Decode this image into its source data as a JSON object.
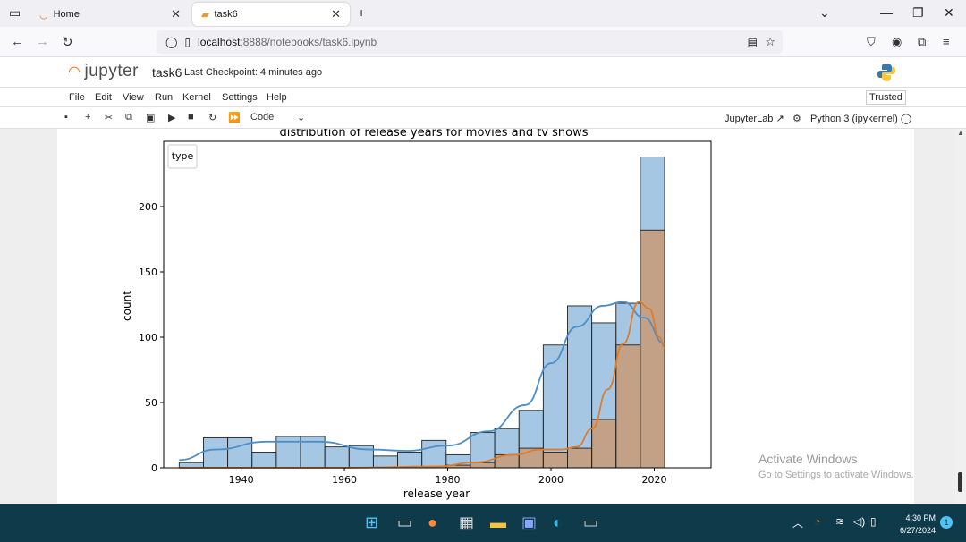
{
  "browser": {
    "tabs": [
      {
        "label": "Home",
        "active": false
      },
      {
        "label": "task6",
        "active": true
      }
    ],
    "new_tab_label": "+",
    "url_host": "localhost",
    "url_rest": ":8888/notebooks/task6.ipynb"
  },
  "jupyter": {
    "logo_text": "jupyter",
    "notebook_name": "task6",
    "checkpoint": "Last Checkpoint: 4 minutes ago",
    "menu": [
      "File",
      "Edit",
      "View",
      "Run",
      "Kernel",
      "Settings",
      "Help"
    ],
    "trusted": "Trusted",
    "cell_type": "Code",
    "jupyterlab_label": "JupyterLab",
    "kernel": "Python 3 (ipykernel)"
  },
  "watermark": {
    "line1": "Activate Windows",
    "line2": "Go to Settings to activate Windows."
  },
  "taskbar": {
    "time": "4:30 PM",
    "date": "6/27/2024",
    "notification_count": "1"
  },
  "colors": {
    "movie": "#4c8fc8",
    "tv": "#e07b2a",
    "taskbar": "#0f3a4a"
  },
  "chart_data": {
    "type": "bar",
    "title": "distribution of release years for movies and tv shows",
    "xlabel": "release year",
    "ylabel": "count",
    "legend_title": "type",
    "legend_placement": "top-left",
    "xlim": [
      1925,
      2031
    ],
    "ylim": [
      0,
      250
    ],
    "xticks": [
      1940,
      1960,
      1980,
      2000,
      2020
    ],
    "yticks": [
      0,
      50,
      100,
      150,
      200
    ],
    "bin_edges": [
      1928,
      1932.7,
      1937.4,
      1942.1,
      1946.8,
      1951.5,
      1956.2,
      1960.9,
      1965.6,
      1970.3,
      1975,
      1979.7,
      1984.4,
      1989.1,
      1993.8,
      1998.5,
      2003.2,
      2007.9,
      2012.6,
      2017.3,
      2022
    ],
    "series": [
      {
        "color_key": "movie",
        "values": [
          4,
          23,
          23,
          12,
          24,
          24,
          16,
          17,
          9,
          12,
          21,
          10,
          27,
          30,
          44,
          94,
          124,
          111,
          126,
          238
        ]
      },
      {
        "color_key": "tv",
        "values": [
          0,
          0,
          0,
          0,
          0,
          0,
          0,
          0,
          0,
          0,
          0,
          2,
          4,
          10,
          15,
          12,
          15,
          37,
          94,
          182
        ]
      }
    ],
    "kde": [
      {
        "color_key": "movie",
        "points": [
          [
            1928,
            6
          ],
          [
            1935,
            14
          ],
          [
            1945,
            20
          ],
          [
            1955,
            20
          ],
          [
            1965,
            14
          ],
          [
            1972,
            13
          ],
          [
            1980,
            17
          ],
          [
            1988,
            28
          ],
          [
            1995,
            48
          ],
          [
            2000,
            80
          ],
          [
            2005,
            108
          ],
          [
            2010,
            124
          ],
          [
            2014,
            127
          ],
          [
            2018,
            115
          ],
          [
            2022,
            95
          ]
        ]
      },
      {
        "color_key": "tv",
        "points": [
          [
            1928,
            0
          ],
          [
            1960,
            0
          ],
          [
            1978,
            1
          ],
          [
            1985,
            4
          ],
          [
            1993,
            10
          ],
          [
            1998,
            14
          ],
          [
            2002,
            14
          ],
          [
            2005,
            16
          ],
          [
            2008,
            30
          ],
          [
            2011,
            60
          ],
          [
            2014,
            95
          ],
          [
            2017,
            127
          ],
          [
            2019,
            122
          ],
          [
            2021,
            100
          ],
          [
            2022,
            92
          ]
        ]
      }
    ]
  }
}
